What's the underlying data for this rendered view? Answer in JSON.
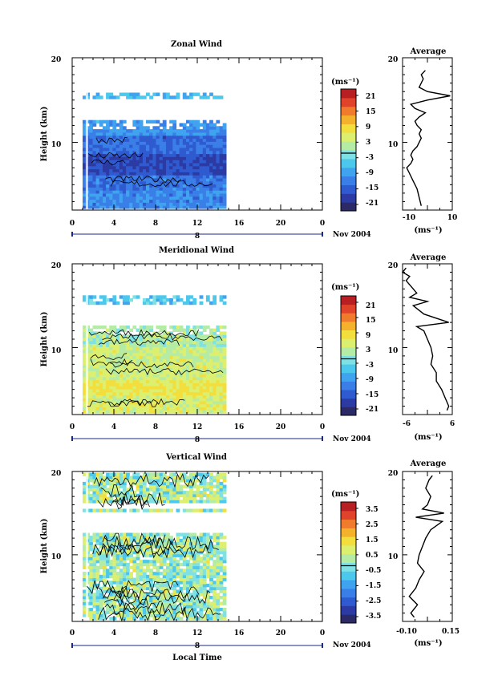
{
  "figure": {
    "x_axis_title": "Local Time",
    "date_label": "Nov 2004",
    "day_label": "8"
  },
  "chart_data": [
    {
      "type": "heatmap",
      "title": "Zonal Wind",
      "ylabel": "Height (km)",
      "xlabel": "Local Time",
      "x_ticks": [
        "0",
        "4",
        "8",
        "12",
        "16",
        "20",
        "0"
      ],
      "y_ticks": [
        "10",
        "20"
      ],
      "xlim": [
        0,
        24
      ],
      "ylim": [
        2,
        20
      ],
      "data_extent_hours": [
        1,
        14.6
      ],
      "colorbar": {
        "unit": "(ms⁻¹)",
        "ticks": [
          "21",
          "15",
          "9",
          "3",
          "-3",
          "-9",
          "-15",
          "-21"
        ],
        "range": [
          -24,
          24
        ]
      },
      "profile": {
        "title": "Average",
        "xlabel": "(ms⁻¹)",
        "x_ticks": [
          "-10",
          "0",
          "10"
        ],
        "xlim": [
          -14,
          10
        ],
        "heights": [
          2.5,
          3.5,
          4.5,
          5.5,
          6.5,
          7.0,
          7.5,
          8.0,
          8.5,
          9.0,
          9.5,
          10.0,
          10.5,
          11.0,
          11.5,
          12.0,
          12.5,
          13.0,
          13.5,
          14.0,
          14.5,
          15.0,
          15.5,
          16.0,
          16.5,
          17.5,
          18.0,
          18.5
        ],
        "values": [
          -5,
          -6,
          -7,
          -9,
          -11,
          -12,
          -10,
          -9,
          -10,
          -9,
          -7,
          -6,
          -5,
          -6,
          -5,
          -7,
          -8,
          -6,
          -3,
          -8,
          -10,
          -2,
          9,
          -2,
          -6,
          -4,
          -5,
          -3
        ]
      }
    },
    {
      "type": "heatmap",
      "title": "Meridional Wind",
      "ylabel": "Height (km)",
      "xlabel": "Local Time",
      "x_ticks": [
        "0",
        "4",
        "8",
        "12",
        "16",
        "20",
        "0"
      ],
      "y_ticks": [
        "10",
        "20"
      ],
      "xlim": [
        0,
        24
      ],
      "ylim": [
        2,
        20
      ],
      "data_extent_hours": [
        1,
        14.6
      ],
      "colorbar": {
        "unit": "(ms⁻¹)",
        "ticks": [
          "21",
          "15",
          "9",
          "3",
          "-3",
          "-9",
          "-15",
          "-21"
        ],
        "range": [
          -24,
          24
        ]
      },
      "profile": {
        "title": "Average",
        "xlabel": "(ms⁻¹)",
        "x_ticks": [
          "-6",
          "0",
          "6"
        ],
        "xlim": [
          -7,
          7
        ],
        "heights": [
          2.5,
          3.0,
          4.0,
          5.0,
          6.0,
          7.0,
          8.0,
          9.0,
          10.0,
          11.0,
          12.0,
          12.5,
          13.0,
          14.0,
          15.0,
          15.5,
          16.0,
          16.5,
          17.0,
          18.0,
          18.5,
          19.0,
          19.5
        ],
        "values": [
          5.5,
          6,
          5,
          4,
          2.5,
          2.5,
          1,
          1.5,
          1,
          0,
          -1,
          -3,
          6,
          -1,
          -4,
          0,
          -5,
          -3,
          -4,
          -6,
          -5,
          -7,
          -6
        ]
      }
    },
    {
      "type": "heatmap",
      "title": "Vertical Wind",
      "ylabel": "Height (km)",
      "xlabel": "Local Time",
      "x_ticks": [
        "0",
        "4",
        "8",
        "12",
        "16",
        "20",
        "0"
      ],
      "y_ticks": [
        "10",
        "20"
      ],
      "xlim": [
        0,
        24
      ],
      "ylim": [
        2,
        20
      ],
      "data_extent_hours": [
        1,
        14.6
      ],
      "colorbar": {
        "unit": "(ms⁻¹)",
        "ticks": [
          "3.5",
          "2.5",
          "1.5",
          "0.5",
          "-0.5",
          "-1.5",
          "-2.5",
          "-3.5"
        ],
        "range": [
          -4,
          4
        ]
      },
      "profile": {
        "title": "Average",
        "xlabel": "(ms⁻¹)",
        "x_ticks": [
          "-0.10",
          "0.15"
        ],
        "xlim": [
          -0.12,
          0.18
        ],
        "heights": [
          2.5,
          3.0,
          4.0,
          5.0,
          6.0,
          7.0,
          8.0,
          9.0,
          10.0,
          11.0,
          12.0,
          13.0,
          14.0,
          14.5,
          15.0,
          15.5,
          16.0,
          17.0,
          18.0,
          19.0,
          19.5
        ],
        "values": [
          -0.05,
          -0.07,
          -0.03,
          -0.08,
          -0.04,
          -0.02,
          0.01,
          -0.03,
          -0.02,
          0.0,
          0.02,
          0.05,
          0.12,
          -0.04,
          0.13,
          0.0,
          0.03,
          0.05,
          0.02,
          0.04,
          0.06
        ]
      }
    }
  ]
}
